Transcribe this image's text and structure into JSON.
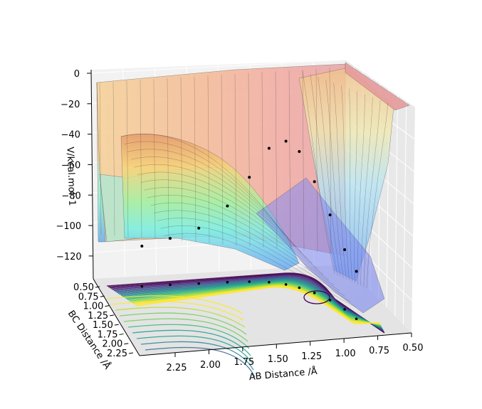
{
  "chart_data": {
    "type": "surface",
    "title": "",
    "xlabel": "AB Distance /Å",
    "ylabel": "BC Distance /Å",
    "zlabel": "V/kcal.mol⁻1",
    "x_ticks": [
      "2.25",
      "2.00",
      "1.75",
      "1.50",
      "1.25",
      "1.00",
      "0.75",
      "0.50"
    ],
    "y_ticks": [
      "0.50",
      "0.75",
      "1.00",
      "1.25",
      "1.50",
      "1.75",
      "2.00",
      "2.25"
    ],
    "z_ticks": [
      "0",
      "−20",
      "−40",
      "−60",
      "−80",
      "−100",
      "−120"
    ],
    "xlim": [
      0.5,
      2.3
    ],
    "ylim": [
      0.5,
      2.3
    ],
    "zlim": [
      -135,
      0
    ],
    "colormaps": {
      "surface": "jet (translucent)",
      "contours": "viridis"
    },
    "grid": true,
    "trajectory_points": [
      [
        2.0,
        0.74,
        -108
      ],
      [
        1.8,
        0.74,
        -104
      ],
      [
        1.6,
        0.75,
        -98
      ],
      [
        1.4,
        0.76,
        -84
      ],
      [
        1.25,
        0.78,
        -65
      ],
      [
        1.12,
        0.82,
        -45
      ],
      [
        1.02,
        0.9,
        -38
      ],
      [
        0.95,
        1.0,
        -42
      ],
      [
        0.88,
        1.15,
        -58
      ],
      [
        0.82,
        1.35,
        -75
      ],
      [
        0.78,
        1.6,
        -92
      ],
      [
        0.76,
        1.85,
        -100
      ]
    ]
  }
}
